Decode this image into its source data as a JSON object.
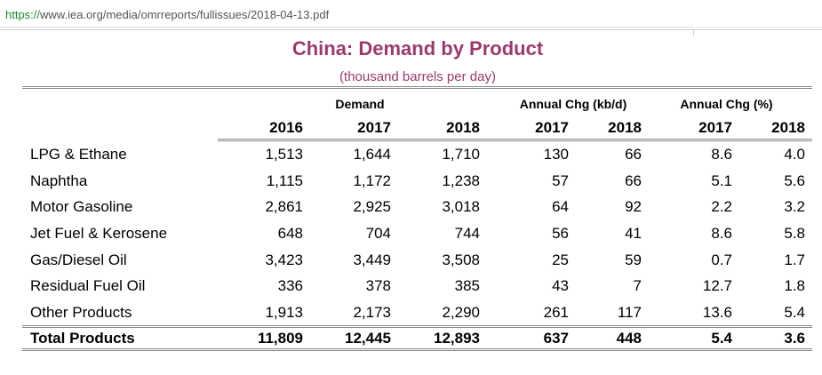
{
  "browser": {
    "url_scheme": "https://",
    "url_rest": "www.iea.org/media/omrreports/fullissues/2018-04-13.pdf"
  },
  "table": {
    "title": "China: Demand by Product",
    "subtitle": "(thousand barrels per day)",
    "group_headers": {
      "demand": "Demand",
      "annual_chg_kbd": "Annual Chg (kb/d)",
      "annual_chg_pct": "Annual Chg (%)"
    },
    "years": [
      "2016",
      "2017",
      "2018",
      "2017",
      "2018",
      "2017",
      "2018"
    ],
    "rows": [
      {
        "label": "LPG & Ethane",
        "values": [
          "1,513",
          "1,644",
          "1,710",
          "130",
          "66",
          "8.6",
          "4.0"
        ]
      },
      {
        "label": "Naphtha",
        "values": [
          "1,115",
          "1,172",
          "1,238",
          "57",
          "66",
          "5.1",
          "5.6"
        ]
      },
      {
        "label": "Motor Gasoline",
        "values": [
          "2,861",
          "2,925",
          "3,018",
          "64",
          "92",
          "2.2",
          "3.2"
        ]
      },
      {
        "label": "Jet Fuel & Kerosene",
        "values": [
          "648",
          "704",
          "744",
          "56",
          "41",
          "8.6",
          "5.8"
        ]
      },
      {
        "label": "Gas/Diesel Oil",
        "values": [
          "3,423",
          "3,449",
          "3,508",
          "25",
          "59",
          "0.7",
          "1.7"
        ]
      },
      {
        "label": "Residual Fuel Oil",
        "values": [
          "336",
          "378",
          "385",
          "43",
          "7",
          "12.7",
          "1.8"
        ]
      },
      {
        "label": "Other Products",
        "values": [
          "1,913",
          "2,173",
          "2,290",
          "261",
          "117",
          "13.6",
          "5.4"
        ]
      }
    ],
    "total": {
      "label": "Total Products",
      "values": [
        "11,809",
        "12,445",
        "12,893",
        "637",
        "448",
        "5.4",
        "3.6"
      ]
    }
  }
}
